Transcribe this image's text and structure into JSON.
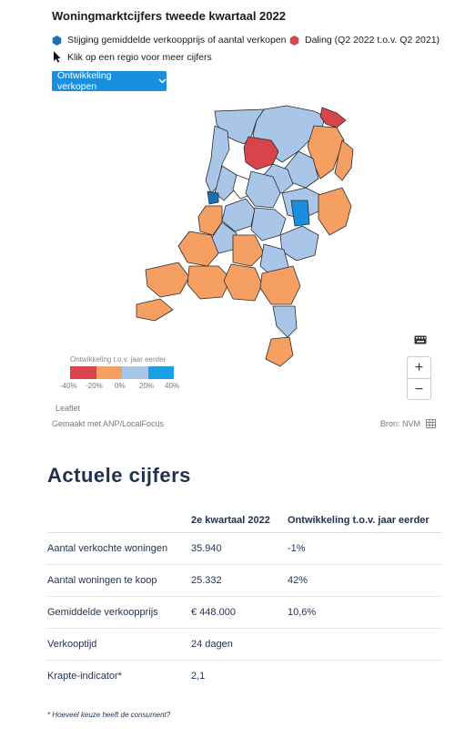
{
  "header": {
    "title": "Woningmarktcijfers tweede kwartaal 2022"
  },
  "legend": {
    "increase_label": "Stijging gemiddelde verkoopprijs of aantal verkopen",
    "increase_color": "#1a6fb5",
    "decrease_label": "Daling (Q2 2022 t.o.v. Q2 2021)",
    "decrease_color": "#d9434b",
    "click_hint": "Klik op een regio voor meer cijfers"
  },
  "dropdown": {
    "selected": "Ontwikkeling verkopen"
  },
  "scale": {
    "title": "Ontwikkeling t.o.v. jaar eerder",
    "colors": [
      "#d9434b",
      "#f5a062",
      "#a9c5e8",
      "#1aa0e3"
    ],
    "labels": [
      "-40%",
      "-20%",
      "0%",
      "20%",
      "40%"
    ]
  },
  "map_controls": {
    "zoom_in": "+",
    "zoom_out": "−"
  },
  "attribution": {
    "leaflet": "Leaflet",
    "made_with": "Gemaakt met ANP/LocalFocus",
    "source": "Bron: NVM"
  },
  "section": {
    "title": "Actuele cijfers"
  },
  "table": {
    "headers": [
      "",
      "2e kwartaal 2022",
      "Ontwikkeling t.o.v. jaar eerder"
    ],
    "rows": [
      [
        "Aantal verkochte woningen",
        "35.940",
        "-1%"
      ],
      [
        "Aantal woningen te koop",
        "25.332",
        "42%"
      ],
      [
        "Gemiddelde verkoopprijs",
        "€ 448.000",
        "10,6%"
      ],
      [
        "Verkooptijd",
        "24 dagen",
        ""
      ],
      [
        "Krapte-indicator*",
        "2,1",
        ""
      ]
    ]
  },
  "footnote": "* Hoeveel keuze heeft de consument?"
}
